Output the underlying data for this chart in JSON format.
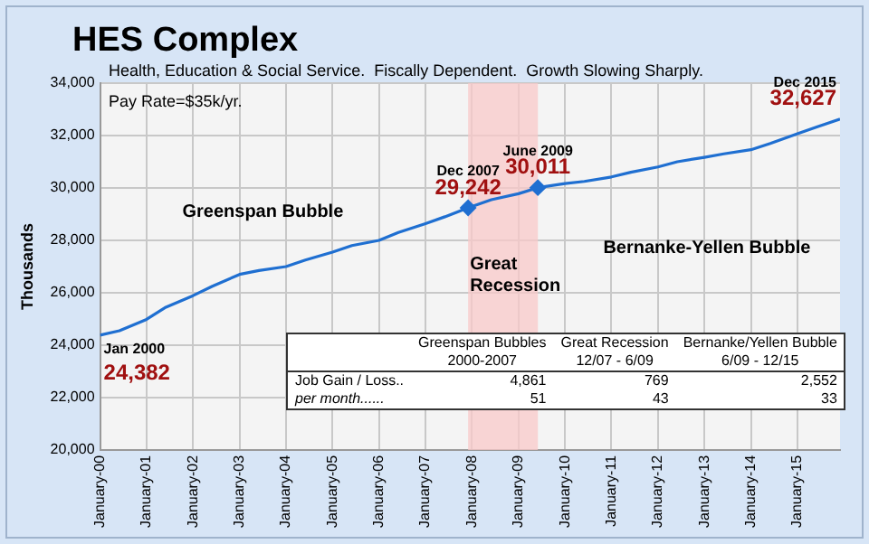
{
  "chart_data": {
    "type": "line",
    "title": "HES Complex",
    "subtitle": "Health, Education & Social Service.  Fiscally Dependent.  Growth Slowing Sharply.",
    "ylabel": "Thousands",
    "x": [
      "2000-01",
      "2000-06",
      "2001-01",
      "2001-06",
      "2002-01",
      "2002-06",
      "2003-01",
      "2003-06",
      "2004-01",
      "2004-06",
      "2005-01",
      "2005-06",
      "2006-01",
      "2006-06",
      "2007-01",
      "2007-06",
      "2007-12",
      "2008-06",
      "2009-01",
      "2009-06",
      "2010-01",
      "2010-06",
      "2011-01",
      "2011-06",
      "2012-01",
      "2012-06",
      "2013-01",
      "2013-06",
      "2014-01",
      "2014-06",
      "2015-01",
      "2015-06",
      "2015-12"
    ],
    "series": [
      {
        "type": "line",
        "color": "#1f6fd1",
        "marker": "none",
        "values": [
          24382,
          24550,
          24985,
          25450,
          25890,
          26250,
          26700,
          26850,
          27000,
          27250,
          27550,
          27800,
          28000,
          28300,
          28640,
          28900,
          29242,
          29550,
          29780,
          30011,
          30170,
          30250,
          30420,
          30600,
          30800,
          31000,
          31170,
          31300,
          31460,
          31700,
          32070,
          32330,
          32627
        ]
      },
      {
        "type": "scatter",
        "color": "#1f6fd1",
        "marker": "diamond",
        "x": [
          "2007-12",
          "2009-06"
        ],
        "values": [
          29242,
          30011
        ]
      }
    ],
    "xlim": [
      "2000-01",
      "2015-12"
    ],
    "xticks": [
      {
        "value": "2000-01",
        "label": "January-00"
      },
      {
        "value": "2001-01",
        "label": "January-01"
      },
      {
        "value": "2002-01",
        "label": "January-02"
      },
      {
        "value": "2003-01",
        "label": "January-03"
      },
      {
        "value": "2004-01",
        "label": "January-04"
      },
      {
        "value": "2005-01",
        "label": "January-05"
      },
      {
        "value": "2006-01",
        "label": "January-06"
      },
      {
        "value": "2007-01",
        "label": "January-07"
      },
      {
        "value": "2008-01",
        "label": "January-08"
      },
      {
        "value": "2009-01",
        "label": "January-09"
      },
      {
        "value": "2010-01",
        "label": "January-10"
      },
      {
        "value": "2011-01",
        "label": "January-11"
      },
      {
        "value": "2012-01",
        "label": "January-12"
      },
      {
        "value": "2013-01",
        "label": "January-13"
      },
      {
        "value": "2014-01",
        "label": "January-14"
      },
      {
        "value": "2015-01",
        "label": "January-15"
      }
    ],
    "ylim": [
      20000,
      34000
    ],
    "yticks": [
      {
        "value": 20000,
        "label": "20,000"
      },
      {
        "value": 22000,
        "label": "22,000"
      },
      {
        "value": 24000,
        "label": "24,000"
      },
      {
        "value": 26000,
        "label": "26,000"
      },
      {
        "value": 28000,
        "label": "28,000"
      },
      {
        "value": 30000,
        "label": "30,000"
      },
      {
        "value": 32000,
        "label": "32,000"
      },
      {
        "value": 34000,
        "label": "34,000"
      }
    ],
    "grid": true,
    "legend": false,
    "bands": [
      {
        "axis": "x",
        "from": "2007-12",
        "to": "2009-06",
        "label": "Great Recession",
        "color": "#f9c9c9"
      }
    ],
    "annotations": [
      "Pay Rate=$35k/yr.",
      "Greenspan Bubble",
      "Bernanke-Yellen Bubble",
      "Greenspan Bubbles",
      "Great Recession",
      "Bernanke/Yellen Bubble",
      "2000-2007",
      "12/07 - 6/09",
      "6/09 - 12/15",
      "Job Gain / Loss..",
      "4,861",
      "769",
      "2,552",
      "per month......",
      "51",
      "43",
      "33",
      {
        "text": "Jan 2000",
        "x": "2000-01",
        "y": 24382
      },
      {
        "text": "24,382",
        "x": "2000-01",
        "y": 24382
      },
      {
        "text": "Dec 2007",
        "x": "2007-12",
        "y": 29242
      },
      {
        "text": "29,242",
        "x": "2007-12",
        "y": 29242
      },
      {
        "text": "June 2009",
        "x": "2009-06",
        "y": 30011
      },
      {
        "text": "30,011",
        "x": "2009-06",
        "y": 30011
      },
      {
        "text": "Dec 2015",
        "x": "2015-12",
        "y": 32627
      },
      {
        "text": "32,627",
        "x": "2015-12",
        "y": 32627
      }
    ]
  }
}
